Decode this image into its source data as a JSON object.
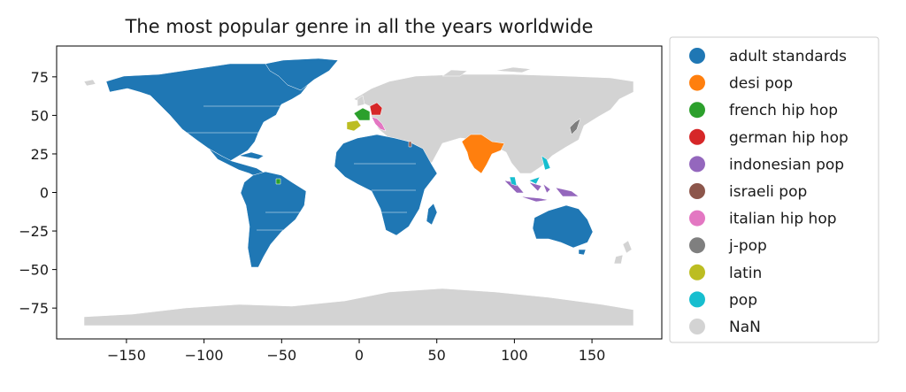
{
  "title": "The most popular genre in all the years worldwide",
  "map": {
    "projection": "plate-carree",
    "xlim": [
      -195,
      195
    ],
    "ylim": [
      -95,
      95
    ],
    "x_ticks": [
      -150,
      -100,
      -50,
      0,
      50,
      100,
      150
    ],
    "x_tick_labels": [
      "−150",
      "−100",
      "−50",
      "0",
      "50",
      "100",
      "150"
    ],
    "y_ticks": [
      75,
      50,
      25,
      0,
      -25,
      -50,
      -75
    ],
    "y_tick_labels": [
      "75",
      "50",
      "25",
      "0",
      "−25",
      "−50",
      "−75"
    ],
    "grid": false,
    "legend_position": "outside-right"
  },
  "legend": [
    {
      "label": "adult standards",
      "color": "#1f77b4"
    },
    {
      "label": "desi pop",
      "color": "#ff7f0e"
    },
    {
      "label": "french hip hop",
      "color": "#2ca02c"
    },
    {
      "label": "german hip hop",
      "color": "#d62728"
    },
    {
      "label": "indonesian pop",
      "color": "#9467bd"
    },
    {
      "label": "israeli pop",
      "color": "#8c564b"
    },
    {
      "label": "italian hip hop",
      "color": "#e377c2"
    },
    {
      "label": "j-pop",
      "color": "#7f7f7f"
    },
    {
      "label": "latin",
      "color": "#bcbd22"
    },
    {
      "label": "pop",
      "color": "#17becf"
    },
    {
      "label": "NaN",
      "color": "#d3d3d3"
    }
  ],
  "regions": [
    {
      "name": "north-america",
      "genre": "adult standards"
    },
    {
      "name": "central-america",
      "genre": "adult standards"
    },
    {
      "name": "greenland",
      "genre": "adult standards"
    },
    {
      "name": "south-america",
      "genre": "adult standards"
    },
    {
      "name": "africa",
      "genre": "adult standards"
    },
    {
      "name": "madagascar",
      "genre": "adult standards"
    },
    {
      "name": "australia",
      "genre": "adult standards"
    },
    {
      "name": "india",
      "genre": "desi pop"
    },
    {
      "name": "france",
      "genre": "french hip hop"
    },
    {
      "name": "french-guiana",
      "genre": "french hip hop"
    },
    {
      "name": "germany",
      "genre": "german hip hop"
    },
    {
      "name": "indonesia",
      "genre": "indonesian pop"
    },
    {
      "name": "israel",
      "genre": "israeli pop"
    },
    {
      "name": "italy",
      "genre": "italian hip hop"
    },
    {
      "name": "japan",
      "genre": "j-pop"
    },
    {
      "name": "spain",
      "genre": "latin"
    },
    {
      "name": "philippines",
      "genre": "pop"
    },
    {
      "name": "malaysia",
      "genre": "pop"
    },
    {
      "name": "eurasia",
      "genre": "NaN"
    },
    {
      "name": "antarctica",
      "genre": "NaN"
    },
    {
      "name": "arctic-islands",
      "genre": "NaN"
    },
    {
      "name": "new-zealand",
      "genre": "NaN"
    },
    {
      "name": "uk",
      "genre": "NaN"
    }
  ]
}
